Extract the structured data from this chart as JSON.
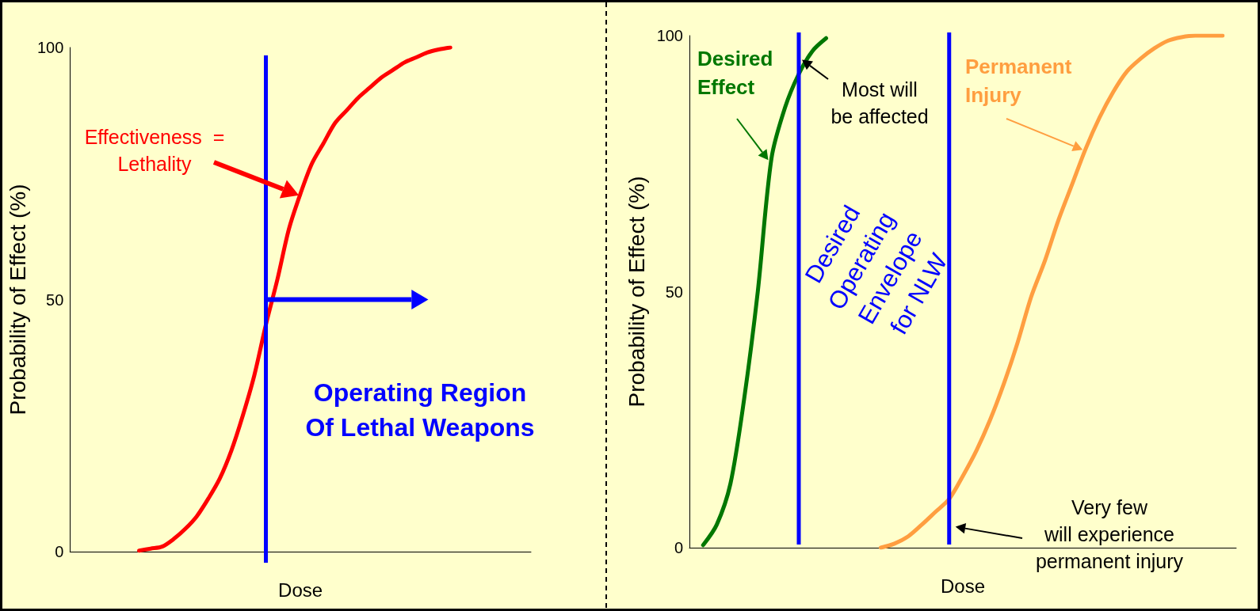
{
  "chart_data": [
    {
      "type": "line",
      "xlabel": "Dose",
      "ylabel": "Probability of Effect (%)",
      "categories": [
        null,
        null,
        null,
        null,
        null,
        null,
        null,
        null,
        null,
        null,
        null,
        null,
        null,
        null,
        null,
        null,
        null,
        null,
        null,
        null,
        null,
        null,
        null,
        null,
        null,
        null,
        null,
        null,
        null,
        null,
        null,
        null,
        null,
        null,
        null,
        null,
        null,
        null,
        null,
        null,
        null
      ],
      "ylim": [
        0,
        100
      ],
      "yticks": [
        0,
        50,
        100
      ],
      "tick_labels": "y",
      "marker": "none",
      "line_style": "solid",
      "series": [
        {
          "color": "#ff0000",
          "values": [
            null,
            null,
            null,
            null,
            null,
            null,
            0.2,
            0.6,
            1,
            2.5,
            4.5,
            7,
            10.5,
            14.5,
            20,
            27,
            35,
            45,
            54,
            64,
            71,
            77,
            81,
            85,
            87.5,
            90,
            92,
            94,
            95.5,
            97,
            98,
            99,
            99.6,
            100,
            null,
            null,
            null,
            null,
            null,
            null,
            null
          ]
        }
      ],
      "annotations": [
        "Effectiveness  =\nLethality",
        "Operating Region\nOf Lethal Weapons"
      ]
    },
    {
      "type": "line",
      "xlabel": "Dose",
      "ylabel": "Probability of Effect (%)",
      "categories": [
        null,
        null,
        null,
        null,
        null,
        null,
        null,
        null,
        null,
        null,
        null,
        null,
        null,
        null,
        null,
        null,
        null,
        null,
        null,
        null,
        null,
        null,
        null,
        null,
        null,
        null,
        null,
        null,
        null,
        null,
        null,
        null,
        null,
        null,
        null,
        null,
        null,
        null,
        null,
        null,
        null
      ],
      "ylim": [
        0,
        100
      ],
      "yticks": [
        0,
        50,
        100
      ],
      "tick_labels": "y",
      "marker": "none",
      "line_style": "solid",
      "series": [
        {
          "name": "Desired\nEffect",
          "color": "#007700",
          "values": [
            null,
            0.5,
            4.5,
            12.5,
            29,
            50,
            76,
            86,
            92.5,
            97,
            99.5,
            null,
            null,
            null,
            null,
            null,
            null,
            null,
            null,
            null,
            null,
            null,
            null,
            null,
            null,
            null,
            null,
            null,
            null,
            null,
            null,
            null,
            null,
            null,
            null,
            null,
            null,
            null,
            null,
            null,
            null
          ]
        },
        {
          "name": "Permanent\nInjury",
          "color": "#ff9e40",
          "values": [
            null,
            null,
            null,
            null,
            null,
            null,
            null,
            null,
            null,
            null,
            null,
            null,
            null,
            null,
            0,
            0.8,
            2.2,
            4.5,
            7,
            9.5,
            14,
            19,
            25,
            32,
            40,
            49,
            56,
            64,
            71,
            78,
            84,
            89,
            93,
            95.5,
            97.5,
            99,
            99.7,
            100,
            100,
            100,
            null
          ]
        }
      ],
      "annotations": [
        "Most will\nbe affected",
        "Desired\nOperating\nEnvelope\nfor NLW",
        "Very few\nwill experience\npermanent injury"
      ]
    }
  ]
}
